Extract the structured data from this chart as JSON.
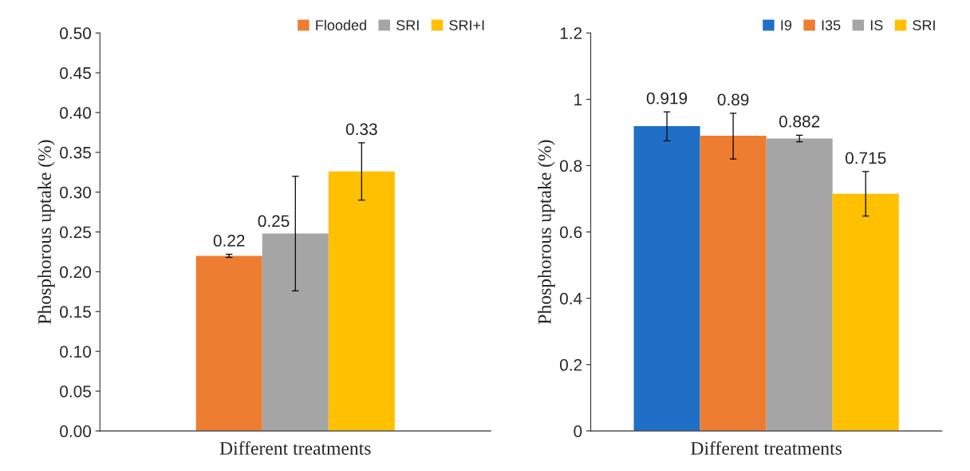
{
  "chart_data": [
    {
      "type": "bar",
      "categories": [
        null
      ],
      "xlabel": "Different treatments",
      "ylabel": "Phosphorous uptake (%)",
      "ylim": [
        0,
        0.5
      ],
      "yticks": [
        {
          "value": 0,
          "label": "0.00"
        },
        {
          "value": 0.05,
          "label": "0.05"
        },
        {
          "value": 0.1,
          "label": "0.10"
        },
        {
          "value": 0.15,
          "label": "0.15"
        },
        {
          "value": 0.2,
          "label": "0.20"
        },
        {
          "value": 0.25,
          "label": "0.25"
        },
        {
          "value": 0.3,
          "label": "0.30"
        },
        {
          "value": 0.35,
          "label": "0.35"
        },
        {
          "value": 0.4,
          "label": "0.40"
        },
        {
          "value": 0.45,
          "label": "0.45"
        },
        {
          "value": 0.5,
          "label": "0.50"
        }
      ],
      "legend": "top right",
      "grid": false,
      "series": [
        {
          "name": "Flooded",
          "color": "#ed7d31",
          "values": [
            0.22
          ],
          "errors": [
            [
              0.218,
              0.222
            ]
          ],
          "value_labels": [
            "0.22"
          ]
        },
        {
          "name": "SRI",
          "color": "#a5a5a5",
          "values": [
            0.248
          ],
          "errors": [
            [
              0.176,
              0.32
            ]
          ],
          "value_labels": [
            "0.25"
          ]
        },
        {
          "name": "SRI+I",
          "color": "#ffc000",
          "values": [
            0.326
          ],
          "errors": [
            [
              0.29,
              0.362
            ]
          ],
          "value_labels": [
            "0.33"
          ]
        }
      ]
    },
    {
      "type": "bar",
      "categories": [
        null
      ],
      "xlabel": "Different treatments",
      "ylabel": "Phosphorous uptake (%)",
      "ylim": [
        0,
        1.2
      ],
      "yticks": [
        0,
        0.2,
        0.4,
        0.6,
        0.8,
        1,
        1.2
      ],
      "legend": "top right",
      "grid": false,
      "data_labels": true,
      "series": [
        {
          "name": "I9",
          "color": "#1f6fc6",
          "values": [
            0.919
          ],
          "errors": [
            [
              0.875,
              0.962
            ]
          ]
        },
        {
          "name": "I35",
          "color": "#ed7d31",
          "values": [
            0.89
          ],
          "errors": [
            [
              0.82,
              0.958
            ]
          ]
        },
        {
          "name": "IS",
          "color": "#a5a5a5",
          "values": [
            0.882
          ],
          "errors": [
            [
              0.872,
              0.892
            ]
          ]
        },
        {
          "name": "SRI",
          "color": "#ffc000",
          "values": [
            0.715
          ],
          "errors": [
            [
              0.648,
              0.782
            ]
          ]
        }
      ]
    }
  ]
}
